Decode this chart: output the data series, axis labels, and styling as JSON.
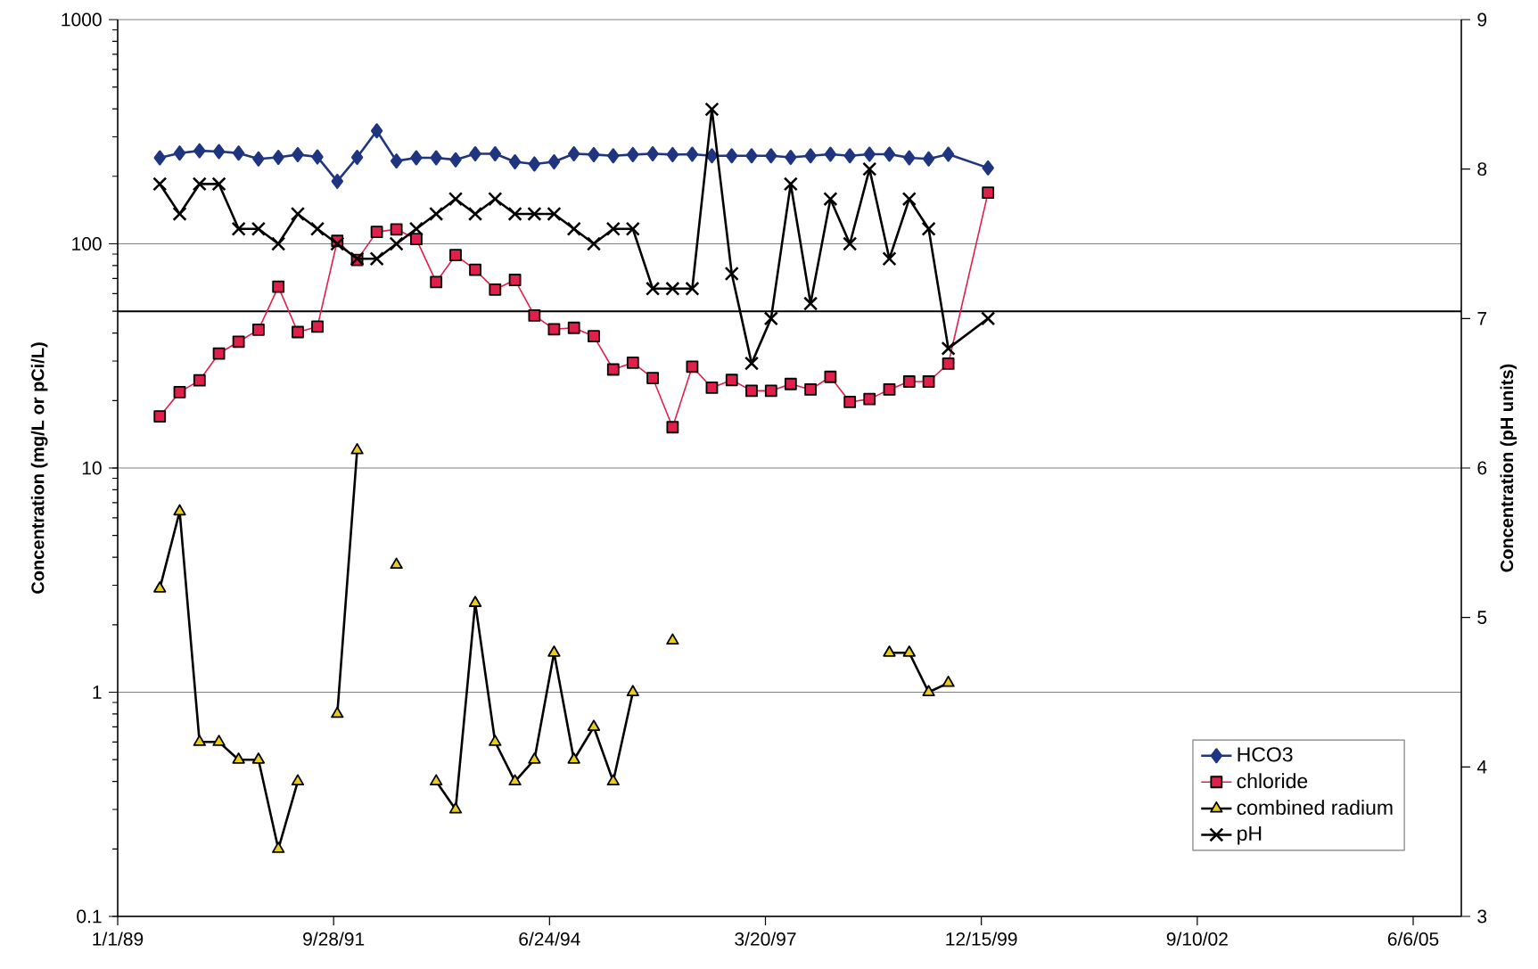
{
  "chart_data": {
    "type": "line",
    "x": [
      "1989-07",
      "1989-10",
      "1990-01",
      "1990-04",
      "1990-07",
      "1990-10",
      "1991-01",
      "1991-04",
      "1991-07",
      "1991-10",
      "1992-01",
      "1992-04",
      "1992-07",
      "1992-10",
      "1993-01",
      "1993-04",
      "1993-07",
      "1993-10",
      "1994-01",
      "1994-04",
      "1994-07",
      "1994-10",
      "1995-01",
      "1995-04",
      "1995-07",
      "1995-10",
      "1996-01",
      "1996-04",
      "1996-07",
      "1996-10",
      "1997-01",
      "1997-04",
      "1997-07",
      "1997-10",
      "1998-01",
      "1998-04",
      "1998-07",
      "1998-10",
      "1999-01",
      "1999-04",
      "1999-07",
      "2000-01"
    ],
    "series": [
      {
        "name": "HCO3",
        "color": "#1f3580",
        "marker": "diamond",
        "values": [
          242,
          254,
          260,
          258,
          254,
          239,
          243,
          250,
          244,
          190,
          243,
          319,
          234,
          242,
          242,
          237,
          252,
          252,
          232,
          227,
          232,
          252,
          250,
          247,
          250,
          252,
          250,
          251,
          247,
          247,
          247,
          247,
          243,
          247,
          251,
          247,
          251,
          251,
          242,
          239,
          251,
          218
        ]
      },
      {
        "name": "chloride",
        "color": "#e0204a",
        "marker": "square",
        "values": [
          17,
          21.8,
          24.6,
          32.4,
          36.6,
          41.4,
          64.4,
          40.4,
          42.7,
          103,
          84.7,
          113,
          116,
          105,
          67.5,
          89,
          76.6,
          62.5,
          69,
          47.9,
          41.6,
          42.2,
          38.7,
          27.5,
          29.5,
          25.2,
          15.2,
          28.3,
          22.8,
          24.7,
          22.1,
          22.1,
          23.7,
          22.4,
          25.5,
          19.7,
          20.3,
          22.4,
          24.3,
          24.3,
          29.2,
          169
        ]
      },
      {
        "name": "combined radium",
        "color": "#e8cc20",
        "marker": "triangle",
        "values": [
          2.9,
          6.4,
          0.6,
          0.6,
          0.5,
          0.5,
          0.2,
          0.4,
          null,
          0.8,
          12,
          null,
          3.7,
          null,
          0.4,
          0.3,
          2.5,
          0.6,
          0.4,
          0.5,
          1.5,
          0.5,
          0.7,
          0.4,
          1.0,
          null,
          1.7,
          null,
          null,
          null,
          null,
          null,
          null,
          null,
          null,
          null,
          null,
          1.5,
          1.5,
          1.0,
          1.1,
          null
        ]
      },
      {
        "name": "pH",
        "color": "#000000",
        "marker": "cross",
        "axis": "y2",
        "values": [
          7.9,
          7.7,
          7.9,
          7.9,
          7.6,
          7.6,
          7.5,
          7.7,
          7.6,
          7.5,
          7.4,
          7.4,
          7.5,
          7.6,
          7.7,
          7.8,
          7.7,
          7.8,
          7.7,
          7.7,
          7.7,
          7.6,
          7.5,
          7.6,
          7.6,
          7.2,
          7.2,
          7.2,
          8.4,
          7.3,
          6.7,
          7.0,
          7.9,
          7.1,
          7.8,
          7.5,
          8.0,
          7.4,
          7.8,
          7.6,
          6.8,
          7.0
        ]
      }
    ],
    "ylabel": "Concentration (mg/L or pCi/L)",
    "y2label": "Concentration (pH units)",
    "log": true,
    "xlim": [
      "1989-01-01",
      "2006-01-15"
    ],
    "xticks": [
      {
        "value": "1989-01-01",
        "label": "1/1/89"
      },
      {
        "value": "1991-09-28",
        "label": "9/28/91"
      },
      {
        "value": "1994-06-24",
        "label": "6/24/94"
      },
      {
        "value": "1997-03-20",
        "label": "3/20/97"
      },
      {
        "value": "1999-12-15",
        "label": "12/15/99"
      },
      {
        "value": "2002-09-10",
        "label": "9/10/02"
      },
      {
        "value": "2005-06-06",
        "label": "6/6/05"
      }
    ],
    "ylim": [
      0.1,
      1000
    ],
    "yticks": [
      0.1,
      1,
      10,
      100,
      1000
    ],
    "y2lim": [
      3,
      9
    ],
    "y2ticks": [
      3,
      4,
      5,
      6,
      7,
      8,
      9
    ],
    "ref_lines": [
      {
        "axis": "y",
        "value": 50,
        "color": "#000000"
      }
    ],
    "grid": "y",
    "legend": "bottom right"
  }
}
